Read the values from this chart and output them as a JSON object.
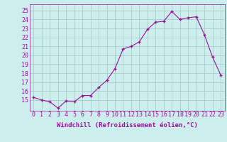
{
  "x": [
    0,
    1,
    2,
    3,
    4,
    5,
    6,
    7,
    8,
    9,
    10,
    11,
    12,
    13,
    14,
    15,
    16,
    17,
    18,
    19,
    20,
    21,
    22,
    23
  ],
  "y": [
    15.3,
    15.0,
    14.8,
    14.1,
    14.9,
    14.8,
    15.5,
    15.5,
    16.4,
    17.2,
    18.5,
    20.7,
    21.0,
    21.5,
    22.9,
    23.7,
    23.8,
    24.9,
    24.0,
    24.2,
    24.3,
    22.3,
    19.8,
    17.8
  ],
  "line_color": "#991199",
  "marker": "D",
  "marker_size": 2.0,
  "bg_color": "#cceeed",
  "grid_color": "#aacccc",
  "yticks": [
    15,
    16,
    17,
    18,
    19,
    20,
    21,
    22,
    23,
    24,
    25
  ],
  "xlabel": "Windchill (Refroidissement éolien,°C)",
  "xlabel_fontsize": 6.5,
  "tick_fontsize": 6.0,
  "ylim": [
    13.8,
    25.7
  ],
  "xlim": [
    -0.5,
    23.5
  ]
}
